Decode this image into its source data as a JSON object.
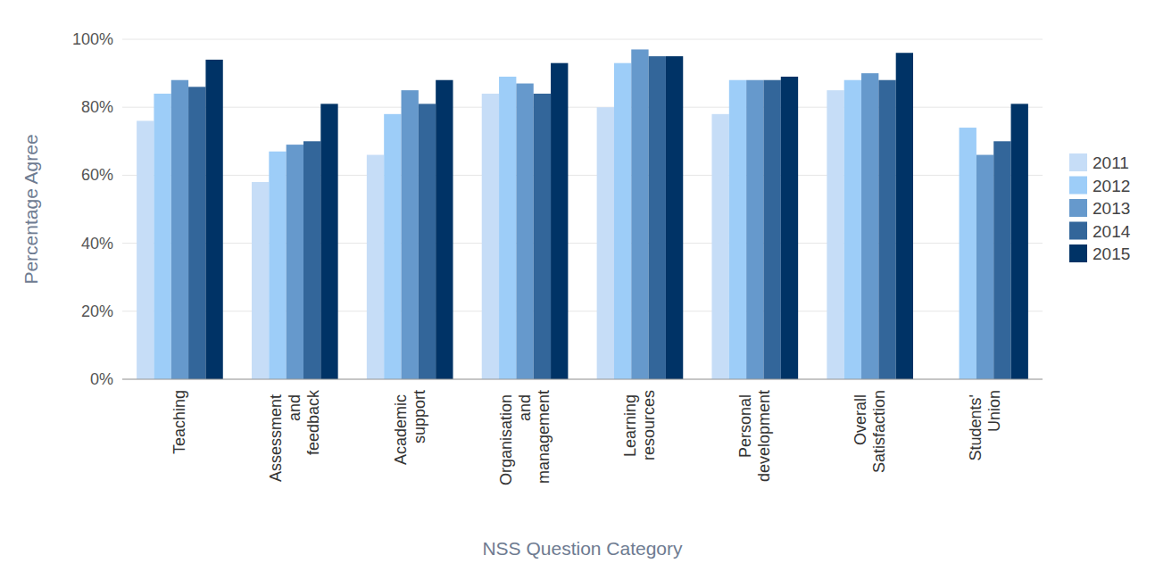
{
  "chart_data": {
    "type": "bar",
    "x_label": "NSS Question Category",
    "y_label": "Percentage Agree",
    "categories": [
      "Teaching",
      "Assessment and feedback",
      "Academic support",
      "Organisation and management",
      "Learning resources",
      "Personal development",
      "Overall Satisfaction",
      "Students' Union"
    ],
    "series": [
      {
        "name": "2011",
        "color": "#c6ddf7",
        "values": [
          76,
          58,
          66,
          84,
          80,
          78,
          85,
          null
        ]
      },
      {
        "name": "2012",
        "color": "#9dcdf8",
        "values": [
          84,
          67,
          78,
          89,
          93,
          88,
          88,
          74
        ]
      },
      {
        "name": "2013",
        "color": "#6699cc",
        "values": [
          88,
          69,
          85,
          87,
          97,
          88,
          90,
          66
        ]
      },
      {
        "name": "2014",
        "color": "#33669a",
        "values": [
          86,
          70,
          81,
          84,
          95,
          88,
          88,
          70
        ]
      },
      {
        "name": "2015",
        "color": "#003366",
        "values": [
          94,
          81,
          88,
          93,
          95,
          89,
          96,
          81
        ]
      }
    ],
    "ylim": [
      0,
      100
    ],
    "yticks": [
      {
        "value": 0,
        "label": "0%"
      },
      {
        "value": 20,
        "label": "20%"
      },
      {
        "value": 40,
        "label": "40%"
      },
      {
        "value": 60,
        "label": "60%"
      },
      {
        "value": 80,
        "label": "80%"
      },
      {
        "value": 100,
        "label": "100%"
      }
    ],
    "grid": true,
    "legend": "right"
  }
}
